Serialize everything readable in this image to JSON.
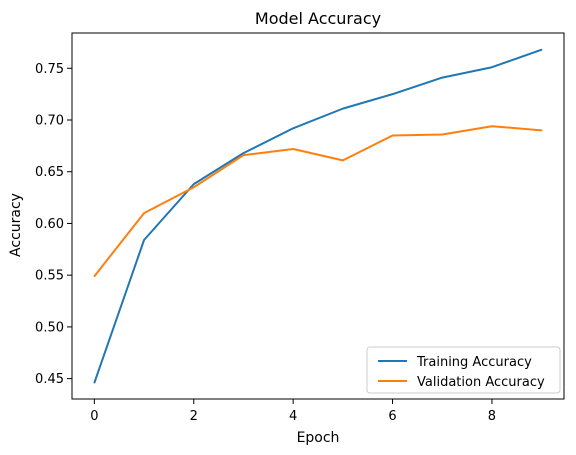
{
  "chart_data": {
    "type": "line",
    "title": "Model Accuracy",
    "xlabel": "Epoch",
    "ylabel": "Accuracy",
    "x": [
      0,
      1,
      2,
      3,
      4,
      5,
      6,
      7,
      8,
      9
    ],
    "xlim": [
      -0.45,
      9.45
    ],
    "ylim": [
      0.4303,
      0.7841
    ],
    "xticks": [
      0,
      2,
      4,
      6,
      8
    ],
    "yticks": [
      0.45,
      0.5,
      0.55,
      0.6,
      0.65,
      0.7,
      0.75
    ],
    "xtick_labels": [
      "0",
      "2",
      "4",
      "6",
      "8"
    ],
    "ytick_labels": [
      "0.45",
      "0.50",
      "0.55",
      "0.60",
      "0.65",
      "0.70",
      "0.75"
    ],
    "series": [
      {
        "name": "Training Accuracy",
        "color": "#1f77b4",
        "values": [
          0.446,
          0.584,
          0.638,
          0.668,
          0.692,
          0.711,
          0.725,
          0.741,
          0.751,
          0.768
        ]
      },
      {
        "name": "Validation Accuracy",
        "color": "#ff7f0e",
        "values": [
          0.549,
          0.61,
          0.635,
          0.666,
          0.672,
          0.661,
          0.685,
          0.686,
          0.694,
          0.69
        ]
      }
    ],
    "grid": false,
    "legend_position": "lower-right"
  }
}
